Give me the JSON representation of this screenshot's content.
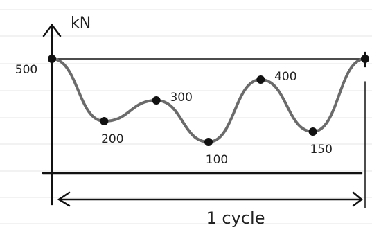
{
  "chart_data": {
    "type": "line",
    "y_label": "kN",
    "annotation": "1 cycle",
    "values": [
      500,
      200,
      300,
      100,
      400,
      150,
      500
    ],
    "color": "#6b6b6b",
    "ylim": [
      0,
      500
    ],
    "yticks": [
      500
    ]
  }
}
